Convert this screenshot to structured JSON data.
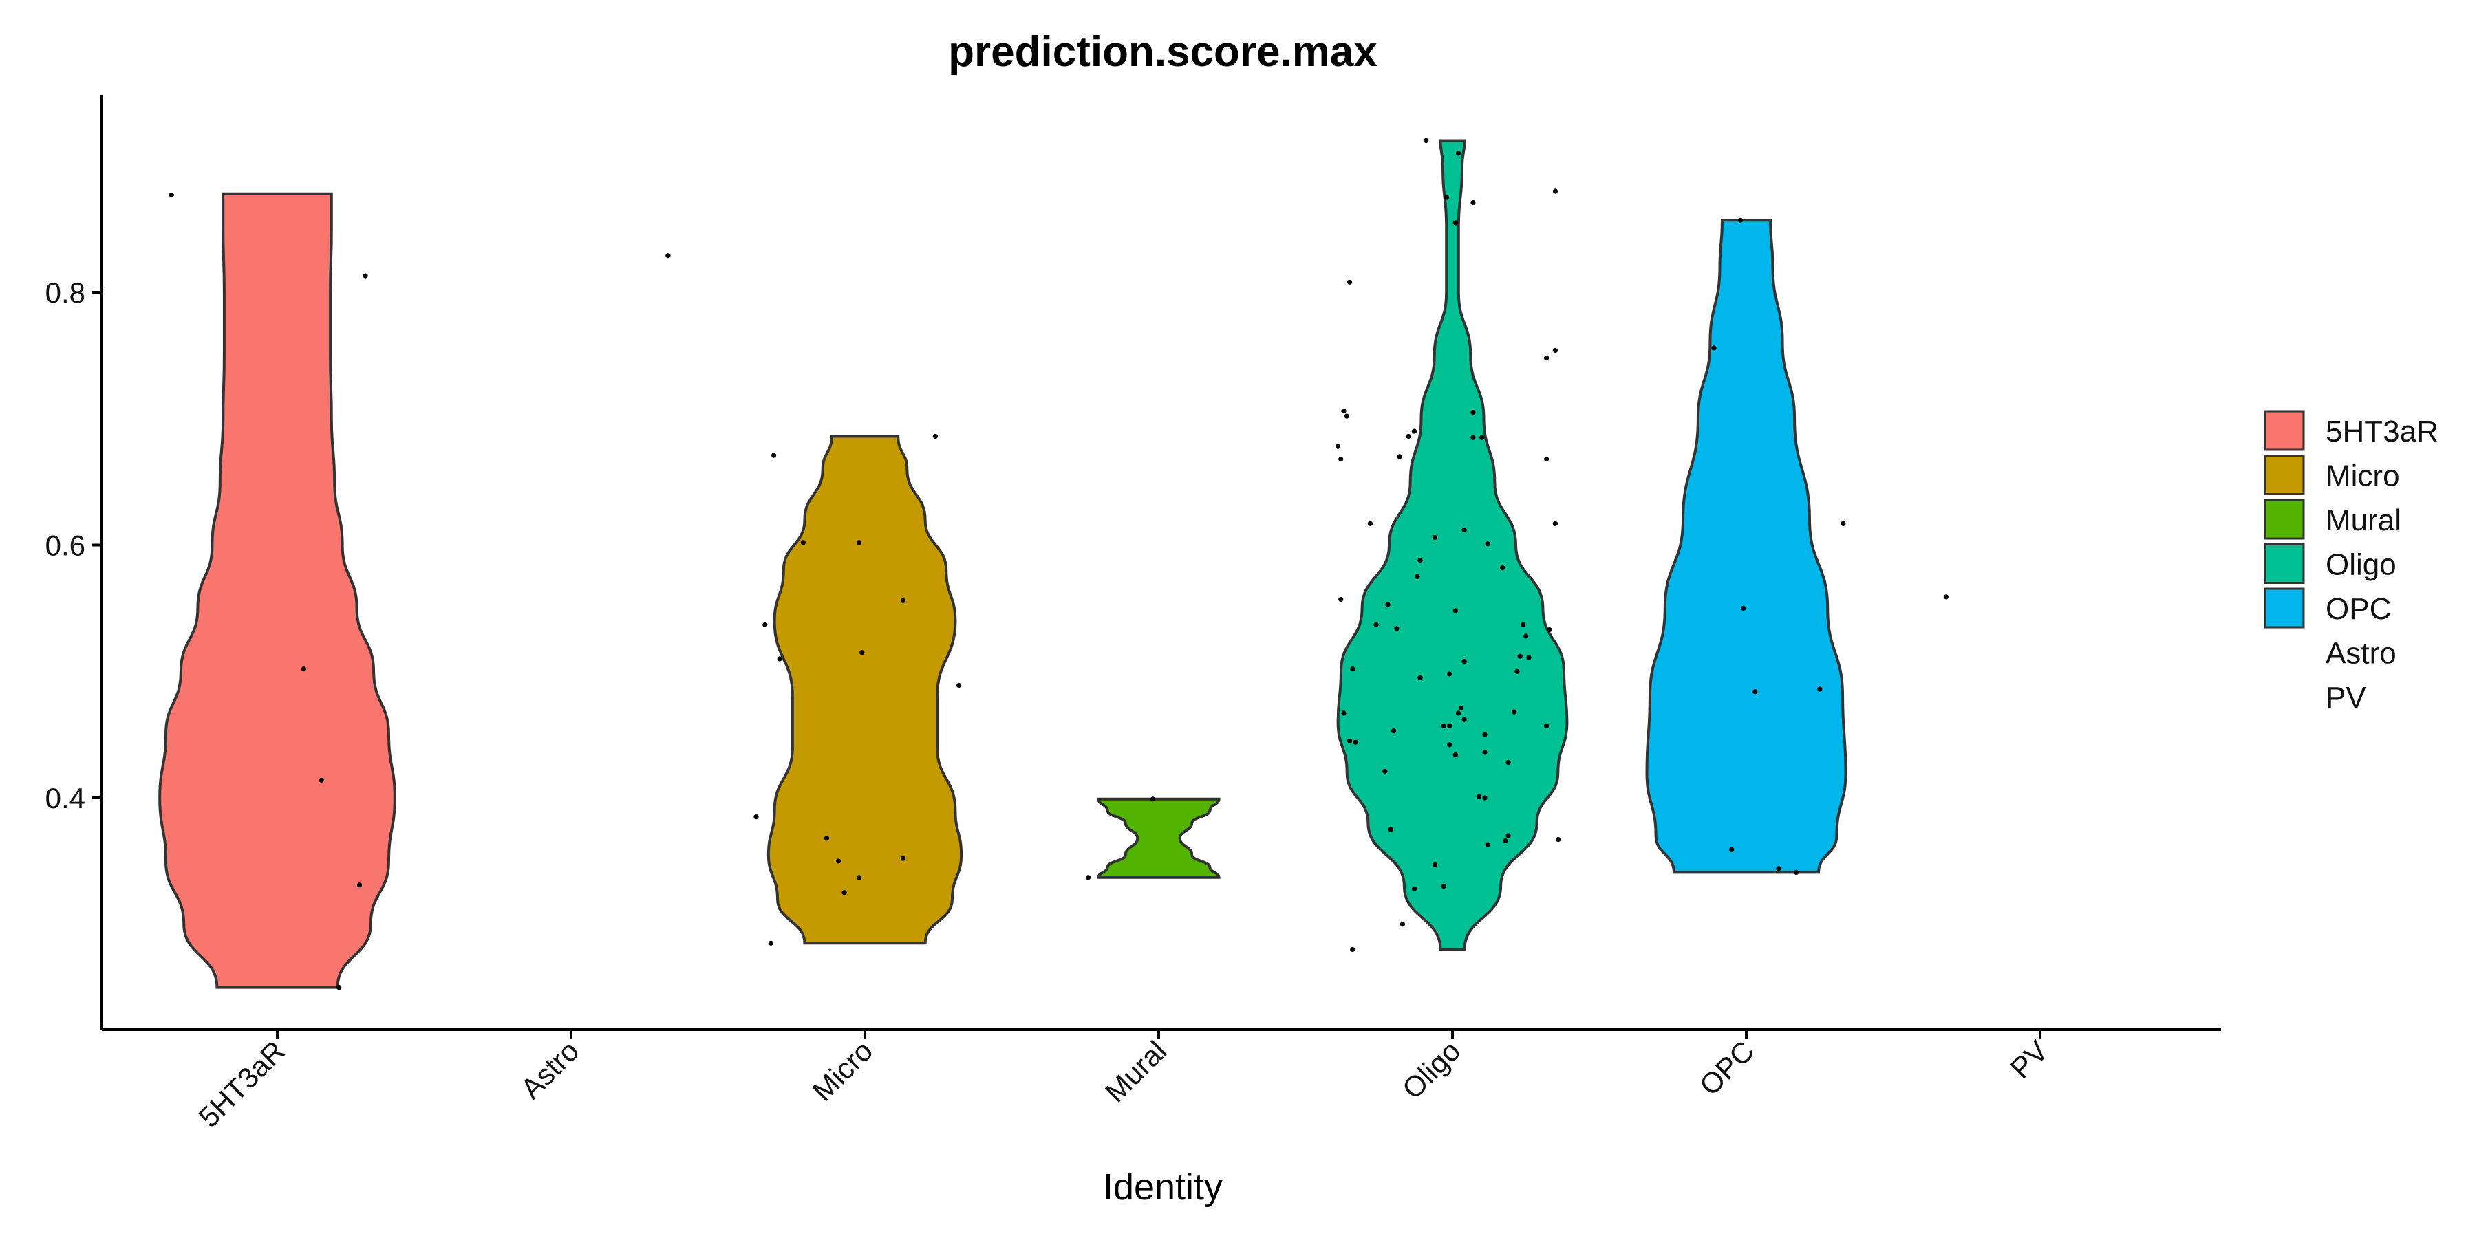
{
  "chart_data": {
    "type": "violin",
    "title": "prediction.score.max",
    "xlabel": "Identity",
    "ylabel": "",
    "ylim": [
      0.22,
      0.96
    ],
    "yticks": [
      0.4,
      0.6,
      0.8
    ],
    "categories": [
      "5HT3aR",
      "Astro",
      "Micro",
      "Mural",
      "Oligo",
      "OPC",
      "PV"
    ],
    "legend": {
      "position": "right",
      "entries": [
        {
          "label": "5HT3aR",
          "color": "#F8766D"
        },
        {
          "label": "Micro",
          "color": "#C49A00"
        },
        {
          "label": "Mural",
          "color": "#53B400"
        },
        {
          "label": "Oligo",
          "color": "#00C094"
        },
        {
          "label": "OPC",
          "color": "#00B6EB"
        },
        {
          "label": "Astro",
          "color": ""
        },
        {
          "label": "PV",
          "color": ""
        }
      ]
    },
    "violins": [
      {
        "category": "5HT3aR",
        "color": "#F8766D",
        "min": 0.25,
        "max": 0.878,
        "profile": [
          [
            0.25,
            1.0
          ],
          [
            0.3,
            1.55
          ],
          [
            0.35,
            1.85
          ],
          [
            0.4,
            1.95
          ],
          [
            0.45,
            1.85
          ],
          [
            0.5,
            1.6
          ],
          [
            0.55,
            1.32
          ],
          [
            0.6,
            1.08
          ],
          [
            0.65,
            0.95
          ],
          [
            0.7,
            0.9
          ],
          [
            0.75,
            0.88
          ],
          [
            0.8,
            0.88
          ],
          [
            0.85,
            0.9
          ],
          [
            0.878,
            0.9
          ]
        ]
      },
      {
        "category": "Micro",
        "color": "#C49A00",
        "min": 0.285,
        "max": 0.686,
        "profile": [
          [
            0.285,
            1.0
          ],
          [
            0.32,
            1.45
          ],
          [
            0.355,
            1.6
          ],
          [
            0.39,
            1.5
          ],
          [
            0.44,
            1.2
          ],
          [
            0.48,
            1.2
          ],
          [
            0.54,
            1.5
          ],
          [
            0.58,
            1.35
          ],
          [
            0.62,
            1.0
          ],
          [
            0.66,
            0.7
          ],
          [
            0.686,
            0.55
          ]
        ]
      },
      {
        "category": "Mural",
        "color": "#53B400",
        "min": 0.337,
        "max": 0.399,
        "profile": [
          [
            0.337,
            1.0
          ],
          [
            0.345,
            0.85
          ],
          [
            0.355,
            0.55
          ],
          [
            0.368,
            0.35
          ],
          [
            0.38,
            0.55
          ],
          [
            0.39,
            0.85
          ],
          [
            0.399,
            1.0
          ]
        ]
      },
      {
        "category": "Oligo",
        "color": "#00C094",
        "min": 0.28,
        "max": 0.92,
        "profile": [
          [
            0.28,
            0.2
          ],
          [
            0.33,
            0.8
          ],
          [
            0.38,
            1.4
          ],
          [
            0.42,
            1.75
          ],
          [
            0.46,
            1.9
          ],
          [
            0.5,
            1.85
          ],
          [
            0.55,
            1.5
          ],
          [
            0.6,
            1.05
          ],
          [
            0.65,
            0.7
          ],
          [
            0.7,
            0.52
          ],
          [
            0.75,
            0.3
          ],
          [
            0.8,
            0.1
          ],
          [
            0.85,
            0.1
          ],
          [
            0.9,
            0.16
          ],
          [
            0.92,
            0.2
          ]
        ]
      },
      {
        "category": "OPC",
        "color": "#00B6EB",
        "min": 0.341,
        "max": 0.857,
        "profile": [
          [
            0.341,
            1.2
          ],
          [
            0.37,
            1.5
          ],
          [
            0.42,
            1.65
          ],
          [
            0.48,
            1.6
          ],
          [
            0.55,
            1.35
          ],
          [
            0.62,
            1.05
          ],
          [
            0.7,
            0.8
          ],
          [
            0.76,
            0.6
          ],
          [
            0.82,
            0.44
          ],
          [
            0.857,
            0.4
          ]
        ]
      }
    ],
    "points": [
      {
        "category": "5HT3aR",
        "y": 0.877,
        "dx": -0.36
      },
      {
        "category": "5HT3aR",
        "y": 0.813,
        "dx": 0.3
      },
      {
        "category": "5HT3aR",
        "y": 0.502,
        "dx": 0.09
      },
      {
        "category": "5HT3aR",
        "y": 0.414,
        "dx": 0.15
      },
      {
        "category": "5HT3aR",
        "y": 0.331,
        "dx": 0.28
      },
      {
        "category": "5HT3aR",
        "y": 0.25,
        "dx": 0.21
      },
      {
        "category": "Astro",
        "y": 0.829,
        "dx": 0.33
      },
      {
        "category": "Micro",
        "y": 0.686,
        "dx": 0.24
      },
      {
        "category": "Micro",
        "y": 0.671,
        "dx": -0.31
      },
      {
        "category": "Micro",
        "y": 0.602,
        "dx": -0.21
      },
      {
        "category": "Micro",
        "y": 0.602,
        "dx": -0.02
      },
      {
        "category": "Micro",
        "y": 0.556,
        "dx": 0.13
      },
      {
        "category": "Micro",
        "y": 0.537,
        "dx": -0.34
      },
      {
        "category": "Micro",
        "y": 0.515,
        "dx": -0.01
      },
      {
        "category": "Micro",
        "y": 0.51,
        "dx": -0.29
      },
      {
        "category": "Micro",
        "y": 0.489,
        "dx": 0.32
      },
      {
        "category": "Micro",
        "y": 0.385,
        "dx": -0.37
      },
      {
        "category": "Micro",
        "y": 0.368,
        "dx": -0.13
      },
      {
        "category": "Micro",
        "y": 0.35,
        "dx": -0.09
      },
      {
        "category": "Micro",
        "y": 0.352,
        "dx": 0.13
      },
      {
        "category": "Micro",
        "y": 0.337,
        "dx": -0.02
      },
      {
        "category": "Micro",
        "y": 0.325,
        "dx": -0.07
      },
      {
        "category": "Micro",
        "y": 0.285,
        "dx": -0.32
      },
      {
        "category": "Mural",
        "y": 0.399,
        "dx": -0.02
      },
      {
        "category": "Mural",
        "y": 0.337,
        "dx": -0.24
      },
      {
        "category": "Oligo",
        "y": 0.92,
        "dx": -0.09
      },
      {
        "category": "Oligo",
        "y": 0.91,
        "dx": 0.02
      },
      {
        "category": "Oligo",
        "y": 0.88,
        "dx": 0.35
      },
      {
        "category": "Oligo",
        "y": 0.875,
        "dx": -0.02
      },
      {
        "category": "Oligo",
        "y": 0.871,
        "dx": 0.07
      },
      {
        "category": "Oligo",
        "y": 0.855,
        "dx": 0.01
      },
      {
        "category": "Oligo",
        "y": 0.808,
        "dx": -0.35
      },
      {
        "category": "Oligo",
        "y": 0.754,
        "dx": 0.35
      },
      {
        "category": "Oligo",
        "y": 0.748,
        "dx": 0.32
      },
      {
        "category": "Oligo",
        "y": 0.706,
        "dx": -0.37
      },
      {
        "category": "Oligo",
        "y": 0.702,
        "dx": -0.36
      },
      {
        "category": "Oligo",
        "y": 0.705,
        "dx": 0.07
      },
      {
        "category": "Oligo",
        "y": 0.69,
        "dx": -0.13
      },
      {
        "category": "Oligo",
        "y": 0.686,
        "dx": -0.15
      },
      {
        "category": "Oligo",
        "y": 0.685,
        "dx": 0.07
      },
      {
        "category": "Oligo",
        "y": 0.685,
        "dx": 0.1
      },
      {
        "category": "Oligo",
        "y": 0.678,
        "dx": -0.39
      },
      {
        "category": "Oligo",
        "y": 0.668,
        "dx": -0.38
      },
      {
        "category": "Oligo",
        "y": 0.67,
        "dx": -0.18
      },
      {
        "category": "Oligo",
        "y": 0.668,
        "dx": 0.32
      },
      {
        "category": "Oligo",
        "y": 0.617,
        "dx": -0.28
      },
      {
        "category": "Oligo",
        "y": 0.617,
        "dx": 0.35
      },
      {
        "category": "Oligo",
        "y": 0.612,
        "dx": 0.04
      },
      {
        "category": "Oligo",
        "y": 0.606,
        "dx": -0.06
      },
      {
        "category": "Oligo",
        "y": 0.601,
        "dx": 0.12
      },
      {
        "category": "Oligo",
        "y": 0.588,
        "dx": -0.11
      },
      {
        "category": "Oligo",
        "y": 0.582,
        "dx": 0.17
      },
      {
        "category": "Oligo",
        "y": 0.575,
        "dx": -0.12
      },
      {
        "category": "Oligo",
        "y": 0.557,
        "dx": -0.38
      },
      {
        "category": "Oligo",
        "y": 0.553,
        "dx": -0.22
      },
      {
        "category": "Oligo",
        "y": 0.548,
        "dx": 0.01
      },
      {
        "category": "Oligo",
        "y": 0.537,
        "dx": -0.26
      },
      {
        "category": "Oligo",
        "y": 0.537,
        "dx": 0.24
      },
      {
        "category": "Oligo",
        "y": 0.534,
        "dx": -0.19
      },
      {
        "category": "Oligo",
        "y": 0.533,
        "dx": 0.33
      },
      {
        "category": "Oligo",
        "y": 0.528,
        "dx": 0.25
      },
      {
        "category": "Oligo",
        "y": 0.512,
        "dx": 0.23
      },
      {
        "category": "Oligo",
        "y": 0.511,
        "dx": 0.26
      },
      {
        "category": "Oligo",
        "y": 0.508,
        "dx": 0.04
      },
      {
        "category": "Oligo",
        "y": 0.5,
        "dx": 0.22
      },
      {
        "category": "Oligo",
        "y": 0.502,
        "dx": -0.34
      },
      {
        "category": "Oligo",
        "y": 0.498,
        "dx": -0.01
      },
      {
        "category": "Oligo",
        "y": 0.495,
        "dx": -0.11
      },
      {
        "category": "Oligo",
        "y": 0.471,
        "dx": 0.03
      },
      {
        "category": "Oligo",
        "y": 0.467,
        "dx": 0.02
      },
      {
        "category": "Oligo",
        "y": 0.468,
        "dx": 0.21
      },
      {
        "category": "Oligo",
        "y": 0.467,
        "dx": -0.37
      },
      {
        "category": "Oligo",
        "y": 0.462,
        "dx": 0.04
      },
      {
        "category": "Oligo",
        "y": 0.457,
        "dx": 0.32
      },
      {
        "category": "Oligo",
        "y": 0.457,
        "dx": -0.03
      },
      {
        "category": "Oligo",
        "y": 0.457,
        "dx": -0.01
      },
      {
        "category": "Oligo",
        "y": 0.453,
        "dx": -0.2
      },
      {
        "category": "Oligo",
        "y": 0.45,
        "dx": 0.11
      },
      {
        "category": "Oligo",
        "y": 0.445,
        "dx": -0.35
      },
      {
        "category": "Oligo",
        "y": 0.444,
        "dx": -0.33
      },
      {
        "category": "Oligo",
        "y": 0.442,
        "dx": -0.01
      },
      {
        "category": "Oligo",
        "y": 0.436,
        "dx": 0.11
      },
      {
        "category": "Oligo",
        "y": 0.434,
        "dx": 0.01
      },
      {
        "category": "Oligo",
        "y": 0.428,
        "dx": 0.19
      },
      {
        "category": "Oligo",
        "y": 0.421,
        "dx": -0.23
      },
      {
        "category": "Oligo",
        "y": 0.401,
        "dx": 0.09
      },
      {
        "category": "Oligo",
        "y": 0.4,
        "dx": 0.11
      },
      {
        "category": "Oligo",
        "y": 0.375,
        "dx": -0.21
      },
      {
        "category": "Oligo",
        "y": 0.37,
        "dx": 0.19
      },
      {
        "category": "Oligo",
        "y": 0.367,
        "dx": 0.36
      },
      {
        "category": "Oligo",
        "y": 0.366,
        "dx": 0.18
      },
      {
        "category": "Oligo",
        "y": 0.363,
        "dx": 0.12
      },
      {
        "category": "Oligo",
        "y": 0.347,
        "dx": -0.06
      },
      {
        "category": "Oligo",
        "y": 0.33,
        "dx": -0.03
      },
      {
        "category": "Oligo",
        "y": 0.328,
        "dx": -0.13
      },
      {
        "category": "Oligo",
        "y": 0.3,
        "dx": -0.17
      },
      {
        "category": "Oligo",
        "y": 0.28,
        "dx": -0.34
      },
      {
        "category": "OPC",
        "y": 0.857,
        "dx": -0.02
      },
      {
        "category": "OPC",
        "y": 0.756,
        "dx": -0.11
      },
      {
        "category": "OPC",
        "y": 0.617,
        "dx": 0.33
      },
      {
        "category": "OPC",
        "y": 0.55,
        "dx": -0.01
      },
      {
        "category": "OPC",
        "y": 0.486,
        "dx": 0.25
      },
      {
        "category": "OPC",
        "y": 0.484,
        "dx": 0.03
      },
      {
        "category": "OPC",
        "y": 0.359,
        "dx": -0.05
      },
      {
        "category": "OPC",
        "y": 0.344,
        "dx": 0.11
      },
      {
        "category": "OPC",
        "y": 0.341,
        "dx": 0.17
      },
      {
        "category": "PV",
        "y": 0.559,
        "dx": -0.32
      }
    ]
  }
}
